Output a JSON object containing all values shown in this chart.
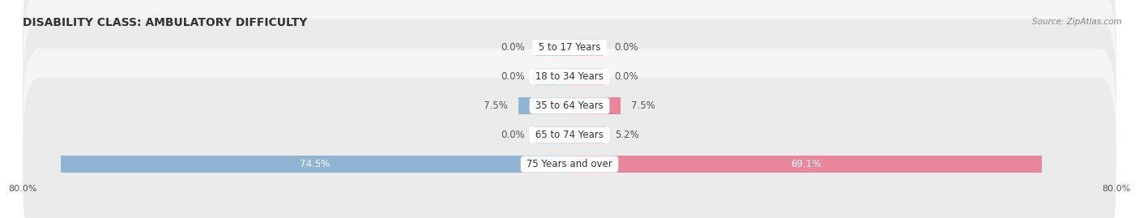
{
  "title": "DISABILITY CLASS: AMBULATORY DIFFICULTY",
  "source": "Source: ZipAtlas.com",
  "categories": [
    "5 to 17 Years",
    "18 to 34 Years",
    "35 to 64 Years",
    "65 to 74 Years",
    "75 Years and over"
  ],
  "male_values": [
    0.0,
    0.0,
    7.5,
    0.0,
    74.5
  ],
  "female_values": [
    0.0,
    0.0,
    7.5,
    5.2,
    69.1
  ],
  "male_color": "#92b4d4",
  "female_color": "#e8879c",
  "row_bg_color_odd": "#ebebeb",
  "row_bg_color_even": "#f5f5f5",
  "xlim_abs": 80.0,
  "title_fontsize": 10,
  "source_fontsize": 7.5,
  "label_fontsize": 8.5,
  "tick_fontsize": 8,
  "bar_height": 0.58,
  "value_stub_size": 5.0,
  "center_label_color": "#333333",
  "value_label_color_outside": "#555555",
  "value_label_color_inside": "#ffffff"
}
